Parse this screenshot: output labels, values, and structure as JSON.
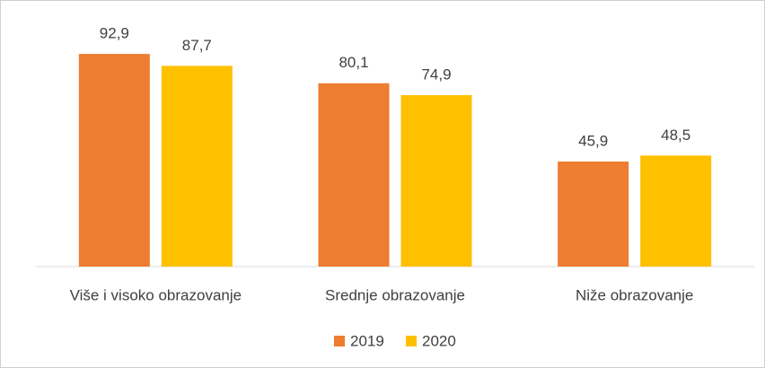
{
  "chart_data": {
    "type": "bar",
    "categories": [
      "Više i visoko obrazovanje",
      "Srednje obrazovanje",
      "Niže obrazovanje"
    ],
    "series": [
      {
        "name": "2019",
        "color": "#ED7D31",
        "values": [
          92.9,
          80.1,
          45.9
        ],
        "value_labels": [
          "92,9",
          "80,1",
          "45,9"
        ]
      },
      {
        "name": "2020",
        "color": "#FFC000",
        "values": [
          87.7,
          74.9,
          48.5
        ],
        "value_labels": [
          "87,7",
          "74,9",
          "48,5"
        ]
      }
    ],
    "legend": "bottom"
  }
}
